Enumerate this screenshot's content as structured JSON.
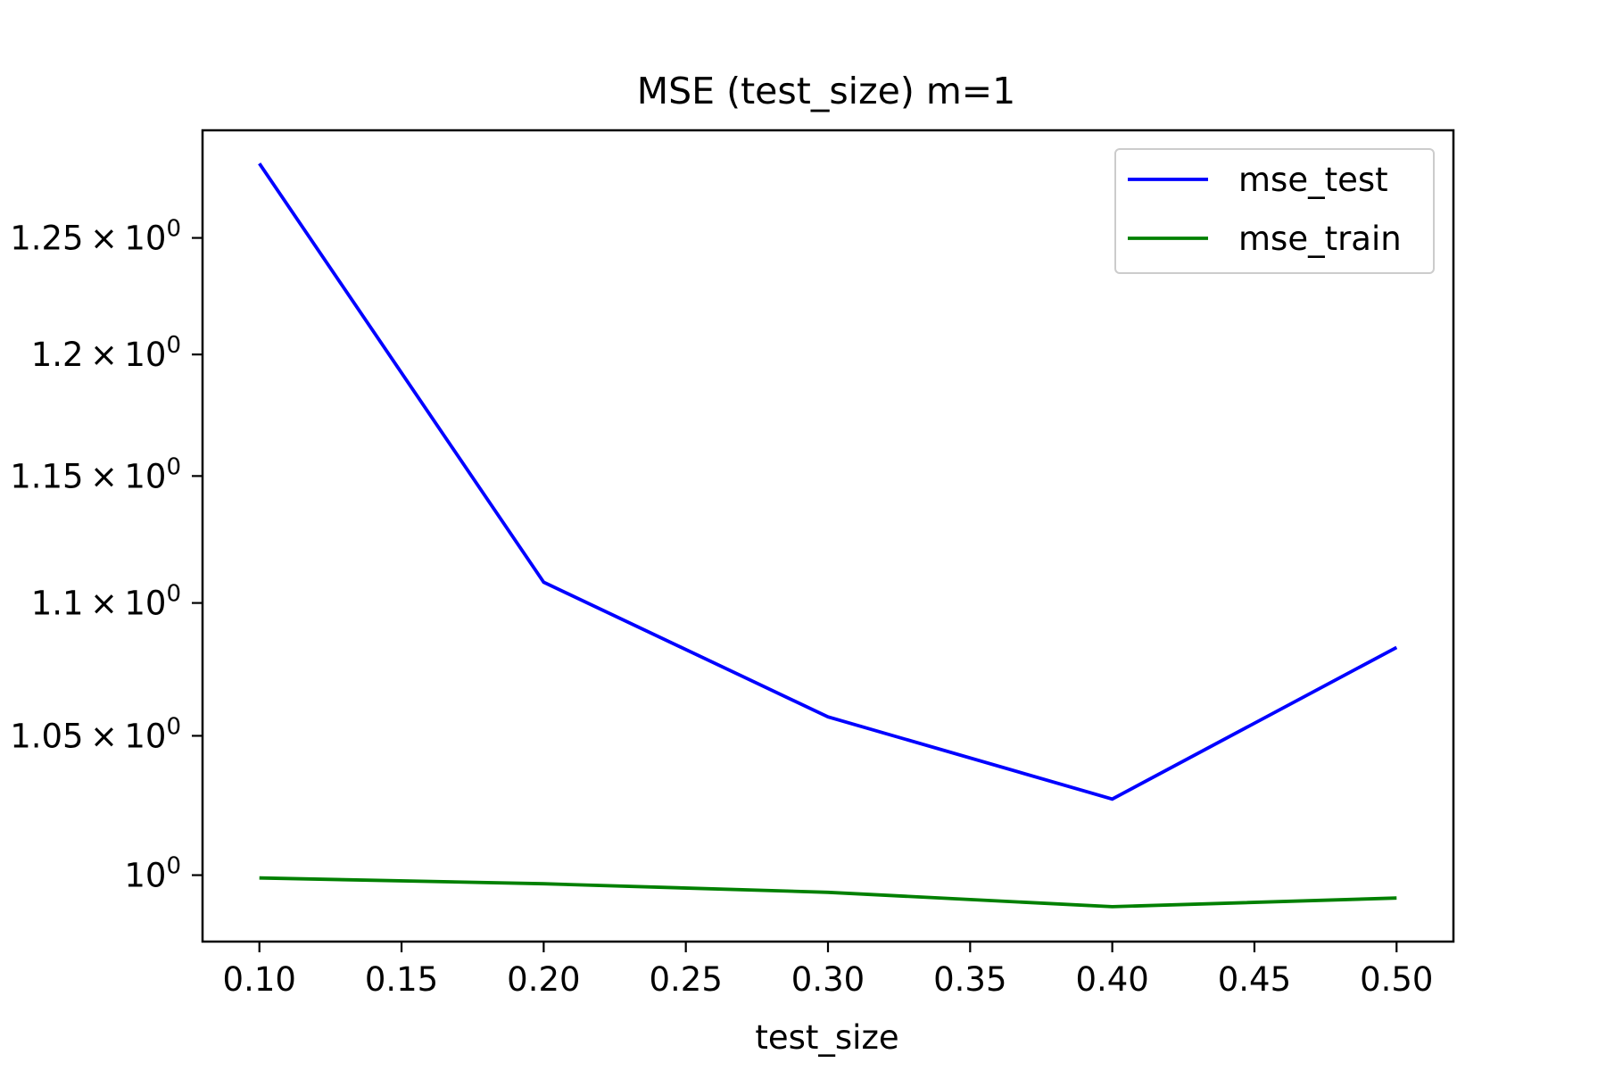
{
  "chart_data": {
    "type": "line",
    "title": "MSE (test_size) m=1",
    "xlabel": "test_size",
    "ylabel": "",
    "x": [
      0.1,
      0.2,
      0.3,
      0.4,
      0.5
    ],
    "series": [
      {
        "name": "mse_test",
        "color": "#0000ff",
        "values": [
          1.283,
          1.108,
          1.057,
          1.027,
          1.083
        ]
      },
      {
        "name": "mse_train",
        "color": "#008000",
        "values": [
          0.999,
          0.997,
          0.994,
          0.989,
          0.992
        ]
      }
    ],
    "xlim": [
      0.08,
      0.52
    ],
    "ylim": [
      0.977,
      1.298
    ],
    "yscale": "log",
    "grid": false,
    "legend_position": "top-right",
    "xticks": [
      {
        "value": 0.1,
        "label": "0.10"
      },
      {
        "value": 0.15,
        "label": "0.15"
      },
      {
        "value": 0.2,
        "label": "0.20"
      },
      {
        "value": 0.25,
        "label": "0.25"
      },
      {
        "value": 0.3,
        "label": "0.30"
      },
      {
        "value": 0.35,
        "label": "0.35"
      },
      {
        "value": 0.4,
        "label": "0.40"
      },
      {
        "value": 0.45,
        "label": "0.45"
      },
      {
        "value": 0.5,
        "label": "0.50"
      }
    ],
    "yticks": [
      {
        "value": 1.0,
        "mantissa": "",
        "base": "10",
        "exp": "0"
      },
      {
        "value": 1.05,
        "mantissa": "1.05",
        "base": "10",
        "exp": "0"
      },
      {
        "value": 1.1,
        "mantissa": "1.1",
        "base": "10",
        "exp": "0"
      },
      {
        "value": 1.15,
        "mantissa": "1.15",
        "base": "10",
        "exp": "0"
      },
      {
        "value": 1.2,
        "mantissa": "1.2",
        "base": "10",
        "exp": "0"
      },
      {
        "value": 1.25,
        "mantissa": "1.25",
        "base": "10",
        "exp": "0"
      }
    ]
  }
}
